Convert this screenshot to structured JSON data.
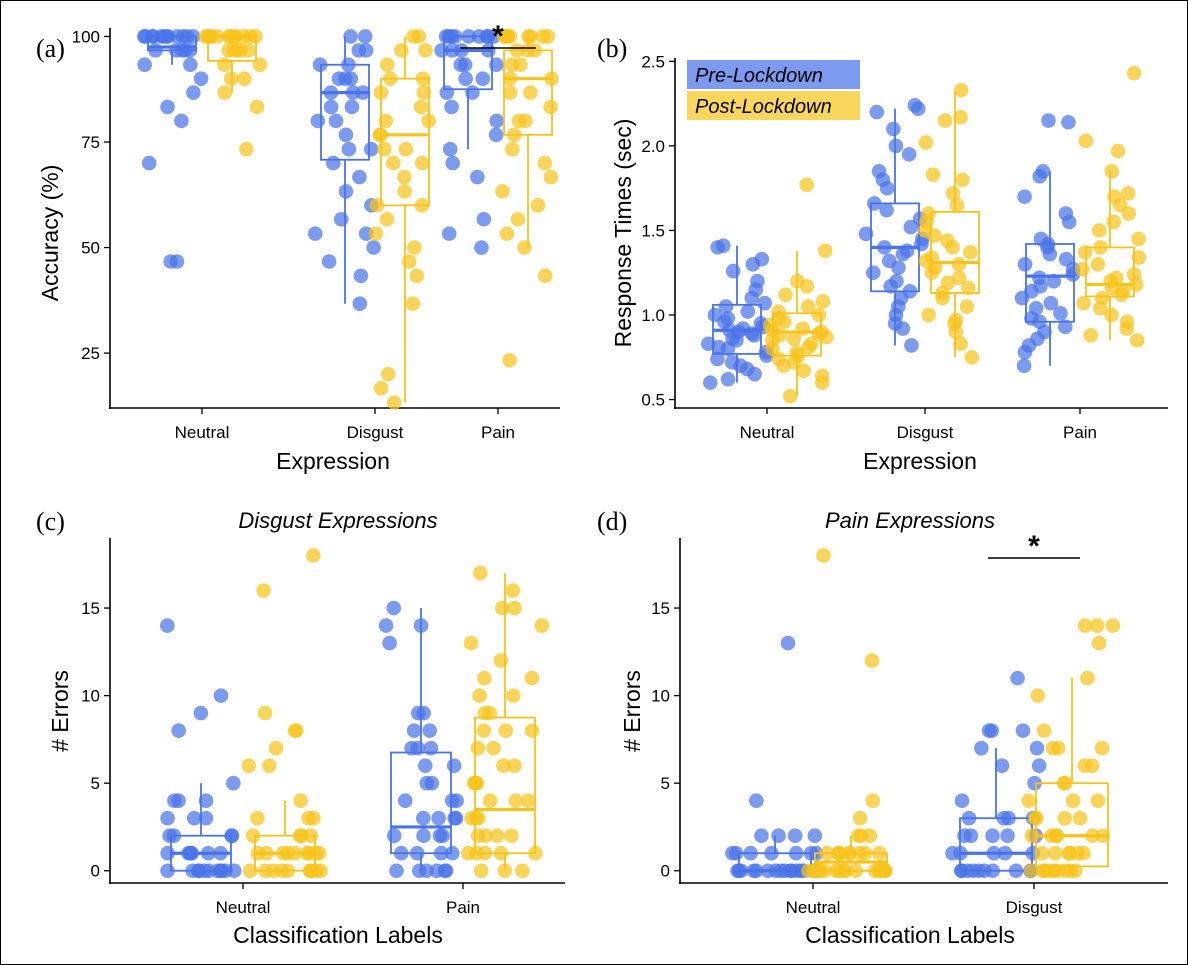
{
  "colors": {
    "pre": "#4a73e8",
    "post": "#f6c31c",
    "pre_legend": "#7b9af0",
    "post_legend": "#fbd65c"
  },
  "legend": {
    "pre": "Pre-Lockdown",
    "post": "Post-Lockdown",
    "placement": "top-left of panel b"
  },
  "chart_data": [
    {
      "panel": "(a)",
      "type": "box-scatter",
      "title": "",
      "xlabel": "Expression",
      "ylabel": "Accuracy (%)",
      "ylim": [
        12,
        102
      ],
      "yticks": [
        25,
        50,
        75,
        100
      ],
      "categories": [
        "Neutral",
        "Disgust",
        "Pain"
      ],
      "significance": [
        {
          "category_index": 2,
          "label": "*"
        }
      ],
      "series": [
        {
          "key": "pre",
          "boxes": [
            {
              "q1": 96.7,
              "median": 97.5,
              "q3": 100,
              "whisker_low": 93.3,
              "whisker_high": 100
            },
            {
              "q1": 70.8,
              "median": 86.7,
              "q3": 93.3,
              "whisker_low": 36.7,
              "whisker_high": 100
            },
            {
              "q1": 87.5,
              "median": 96.7,
              "q3": 100,
              "whisker_low": 73.3,
              "whisker_high": 100
            }
          ],
          "points": [
            [
              100,
              100,
              100,
              100,
              100,
              100,
              100,
              100,
              100,
              100,
              100,
              100,
              96.7,
              96.7,
              96.7,
              96.7,
              96.7,
              93.3,
              93.3,
              90,
              86.7,
              83.3,
              80,
              70,
              46.7,
              46.7
            ],
            [
              100,
              100,
              96.7,
              96.7,
              93.3,
              93.3,
              90,
              90,
              90,
              86.7,
              86.7,
              86.7,
              83.3,
              83.3,
              80,
              80,
              76.7,
              73.3,
              73.3,
              70,
              66.7,
              63.3,
              60,
              56.7,
              53.3,
              53.3,
              50,
              46.7,
              43.3,
              36.7
            ],
            [
              100,
              100,
              100,
              100,
              100,
              100,
              100,
              100,
              100,
              96.7,
              96.7,
              96.7,
              96.7,
              93.3,
              93.3,
              93.3,
              90,
              90,
              86.7,
              86.7,
              83.3,
              80,
              76.7,
              73.3,
              70,
              66.7,
              56.7,
              53.3,
              50
            ]
          ]
        },
        {
          "key": "post",
          "boxes": [
            {
              "q1": 94.2,
              "median": 100,
              "q3": 100,
              "whisker_low": 86.7,
              "whisker_high": 100
            },
            {
              "q1": 60,
              "median": 76.7,
              "q3": 90,
              "whisker_low": 13.3,
              "whisker_high": 100
            },
            {
              "q1": 76.7,
              "median": 90,
              "q3": 96.7,
              "whisker_low": 50,
              "whisker_high": 100
            }
          ],
          "points": [
            [
              100,
              100,
              100,
              100,
              100,
              100,
              100,
              100,
              100,
              100,
              100,
              100,
              96.7,
              96.7,
              96.7,
              96.7,
              96.7,
              93.3,
              93.3,
              90,
              90,
              86.7,
              83.3,
              73.3
            ],
            [
              100,
              100,
              96.7,
              96.7,
              93.3,
              90,
              90,
              86.7,
              86.7,
              83.3,
              80,
              80,
              76.7,
              76.7,
              73.3,
              73.3,
              70,
              70,
              66.7,
              63.3,
              60,
              60,
              56.7,
              53.3,
              50,
              46.7,
              43.3,
              36.7,
              20,
              16.7,
              13.3
            ],
            [
              100,
              100,
              100,
              100,
              100,
              100,
              100,
              100,
              96.7,
              96.7,
              96.7,
              93.3,
              93.3,
              90,
              90,
              86.7,
              86.7,
              83.3,
              80,
              80,
              76.7,
              73.3,
              70,
              66.7,
              63.3,
              60,
              56.7,
              53.3,
              50,
              43.3,
              23.3
            ]
          ]
        }
      ]
    },
    {
      "panel": "(b)",
      "type": "box-scatter",
      "title": "",
      "xlabel": "Expression",
      "ylabel": "Response Times (sec)",
      "ylim": [
        0.45,
        2.52
      ],
      "yticks": [
        0.5,
        1.0,
        1.5,
        2.0,
        2.5
      ],
      "ytick_labels": [
        "0.5",
        "1.0",
        "1.5",
        "2.0",
        "2.5"
      ],
      "categories": [
        "Neutral",
        "Disgust",
        "Pain"
      ],
      "significance": [],
      "series": [
        {
          "key": "pre",
          "boxes": [
            {
              "q1": 0.77,
              "median": 0.91,
              "q3": 1.06,
              "whisker_low": 0.6,
              "whisker_high": 1.41
            },
            {
              "q1": 1.14,
              "median": 1.4,
              "q3": 1.66,
              "whisker_low": 0.82,
              "whisker_high": 2.22
            },
            {
              "q1": 0.96,
              "median": 1.23,
              "q3": 1.42,
              "whisker_low": 0.7,
              "whisker_high": 1.85
            }
          ],
          "points": [
            [
              1.41,
              1.4,
              1.33,
              1.3,
              1.26,
              1.2,
              1.15,
              1.1,
              1.07,
              1.05,
              1.02,
              1.0,
              0.98,
              0.96,
              0.95,
              0.93,
              0.92,
              0.91,
              0.9,
              0.89,
              0.88,
              0.86,
              0.85,
              0.83,
              0.81,
              0.8,
              0.78,
              0.76,
              0.74,
              0.72,
              0.7,
              0.68,
              0.65,
              0.62,
              0.6
            ],
            [
              2.24,
              2.22,
              2.2,
              2.1,
              2.0,
              1.95,
              1.85,
              1.8,
              1.75,
              1.66,
              1.62,
              1.57,
              1.52,
              1.48,
              1.45,
              1.42,
              1.4,
              1.38,
              1.36,
              1.32,
              1.28,
              1.25,
              1.2,
              1.17,
              1.14,
              1.1,
              1.05,
              1.0,
              0.95,
              0.92,
              0.82
            ],
            [
              2.15,
              2.14,
              1.85,
              1.82,
              1.7,
              1.6,
              1.55,
              1.45,
              1.42,
              1.4,
              1.36,
              1.33,
              1.3,
              1.27,
              1.24,
              1.22,
              1.2,
              1.17,
              1.14,
              1.1,
              1.07,
              1.04,
              1.01,
              0.98,
              0.96,
              0.93,
              0.9,
              0.86,
              0.82,
              0.78,
              0.7
            ]
          ]
        },
        {
          "key": "post",
          "boxes": [
            {
              "q1": 0.76,
              "median": 0.9,
              "q3": 1.01,
              "whisker_low": 0.52,
              "whisker_high": 1.38
            },
            {
              "q1": 1.13,
              "median": 1.31,
              "q3": 1.61,
              "whisker_low": 0.75,
              "whisker_high": 2.32
            },
            {
              "q1": 1.11,
              "median": 1.18,
              "q3": 1.4,
              "whisker_low": 0.85,
              "whisker_high": 1.86
            }
          ],
          "points": [
            [
              1.77,
              1.38,
              1.2,
              1.17,
              1.12,
              1.08,
              1.05,
              1.02,
              1.0,
              0.98,
              0.96,
              0.94,
              0.92,
              0.91,
              0.9,
              0.89,
              0.88,
              0.87,
              0.86,
              0.85,
              0.83,
              0.81,
              0.8,
              0.78,
              0.76,
              0.74,
              0.72,
              0.7,
              0.67,
              0.64,
              0.6,
              0.52
            ],
            [
              2.33,
              2.17,
              2.15,
              2.02,
              1.83,
              1.8,
              1.72,
              1.65,
              1.6,
              1.55,
              1.5,
              1.47,
              1.44,
              1.4,
              1.37,
              1.34,
              1.32,
              1.3,
              1.28,
              1.25,
              1.22,
              1.19,
              1.16,
              1.13,
              1.1,
              1.05,
              1.0,
              0.97,
              0.95,
              0.9,
              0.83,
              0.75
            ],
            [
              2.43,
              2.03,
              1.97,
              1.85,
              1.72,
              1.7,
              1.65,
              1.6,
              1.55,
              1.5,
              1.45,
              1.4,
              1.37,
              1.34,
              1.3,
              1.27,
              1.24,
              1.22,
              1.2,
              1.18,
              1.16,
              1.14,
              1.12,
              1.1,
              1.07,
              1.04,
              1.0,
              0.96,
              0.92,
              0.88,
              0.85
            ]
          ]
        }
      ]
    },
    {
      "panel": "(c)",
      "type": "box-scatter",
      "title": "Disgust Expressions",
      "xlabel": "Classification Labels",
      "ylabel": "# Errors",
      "ylim": [
        -0.7,
        19
      ],
      "yticks": [
        0,
        5,
        10,
        15
      ],
      "categories": [
        "Neutral",
        "Pain"
      ],
      "significance": [],
      "series": [
        {
          "key": "pre",
          "boxes": [
            {
              "q1": 0,
              "median": 1,
              "q3": 2,
              "whisker_low": 0,
              "whisker_high": 5
            },
            {
              "q1": 1,
              "median": 2.5,
              "q3": 6.75,
              "whisker_low": 0,
              "whisker_high": 15
            }
          ],
          "points": [
            [
              14,
              10,
              9,
              8,
              5,
              4,
              4,
              4,
              3,
              3,
              3,
              2,
              2,
              2,
              2,
              1,
              1,
              1,
              1,
              1,
              1,
              1,
              0,
              0,
              0,
              0,
              0,
              0,
              0,
              0,
              0,
              0,
              0
            ],
            [
              15,
              14,
              14,
              13,
              9,
              9,
              8,
              8,
              7,
              7,
              7,
              6,
              6,
              5,
              5,
              4,
              4,
              4,
              3,
              3,
              3,
              3,
              2,
              2,
              2,
              2,
              1,
              1,
              1,
              1,
              0,
              0,
              0,
              0,
              0,
              0
            ]
          ]
        },
        {
          "key": "post",
          "boxes": [
            {
              "q1": 0,
              "median": 1,
              "q3": 2,
              "whisker_low": 0,
              "whisker_high": 4
            },
            {
              "q1": 1,
              "median": 3.5,
              "q3": 8.75,
              "whisker_low": 0,
              "whisker_high": 17
            }
          ],
          "points": [
            [
              18,
              16,
              9,
              8,
              8,
              7,
              6,
              6,
              4,
              3,
              3,
              3,
              2,
              2,
              2,
              2,
              1,
              1,
              1,
              1,
              1,
              1,
              1,
              1,
              1,
              0,
              0,
              0,
              0,
              0,
              0,
              0,
              0,
              0,
              0
            ],
            [
              17,
              16,
              15,
              15,
              14,
              13,
              12,
              11,
              11,
              10,
              10,
              9,
              9,
              8,
              8,
              8,
              7,
              7,
              6,
              6,
              5,
              5,
              5,
              4,
              4,
              4,
              3,
              3,
              3,
              2,
              2,
              2,
              2,
              1,
              1,
              1,
              1,
              1,
              0,
              0,
              0
            ]
          ]
        }
      ]
    },
    {
      "panel": "(d)",
      "type": "box-scatter",
      "title": "Pain Expressions",
      "xlabel": "Classification Labels",
      "ylabel": "# Errors",
      "ylim": [
        -0.7,
        19
      ],
      "yticks": [
        0,
        5,
        10,
        15
      ],
      "categories": [
        "Neutral",
        "Disgust"
      ],
      "significance": [
        {
          "category_index": 1,
          "label": "*"
        }
      ],
      "series": [
        {
          "key": "pre",
          "boxes": [
            {
              "q1": 0,
              "median": 0,
              "q3": 1,
              "whisker_low": 0,
              "whisker_high": 2
            },
            {
              "q1": 0,
              "median": 1,
              "q3": 3,
              "whisker_low": 0,
              "whisker_high": 7
            }
          ],
          "points": [
            [
              13,
              4,
              2,
              2,
              2,
              2,
              1,
              1,
              1,
              1,
              1,
              1,
              1,
              0,
              0,
              0,
              0,
              0,
              0,
              0,
              0,
              0,
              0,
              0,
              0,
              0,
              0,
              0
            ],
            [
              11,
              8,
              8,
              8,
              7,
              7,
              6,
              6,
              5,
              4,
              3,
              3,
              3,
              3,
              2,
              2,
              2,
              2,
              2,
              1,
              1,
              1,
              1,
              1,
              0,
              0,
              0,
              0,
              0,
              0,
              0,
              0,
              0,
              0
            ]
          ]
        },
        {
          "key": "post",
          "boxes": [
            {
              "q1": 0,
              "median": 0.5,
              "q3": 1,
              "whisker_low": 0,
              "whisker_high": 2
            },
            {
              "q1": 0.25,
              "median": 2,
              "q3": 5,
              "whisker_low": 0,
              "whisker_high": 11
            }
          ],
          "points": [
            [
              18,
              12,
              4,
              3,
              2,
              2,
              2,
              1,
              1,
              1,
              1,
              1,
              1,
              1,
              1,
              1,
              0,
              0,
              0,
              0,
              0,
              0,
              0,
              0,
              0,
              0,
              0,
              0,
              0,
              0,
              0,
              0,
              0
            ],
            [
              14,
              14,
              14,
              13,
              11,
              10,
              8,
              7,
              7,
              7,
              6,
              6,
              5,
              5,
              4,
              4,
              4,
              3,
              3,
              3,
              3,
              2,
              2,
              2,
              2,
              2,
              2,
              1,
              1,
              1,
              1,
              1,
              1,
              0,
              0,
              0,
              0,
              0,
              0,
              0,
              0,
              0,
              0
            ]
          ]
        }
      ]
    }
  ]
}
